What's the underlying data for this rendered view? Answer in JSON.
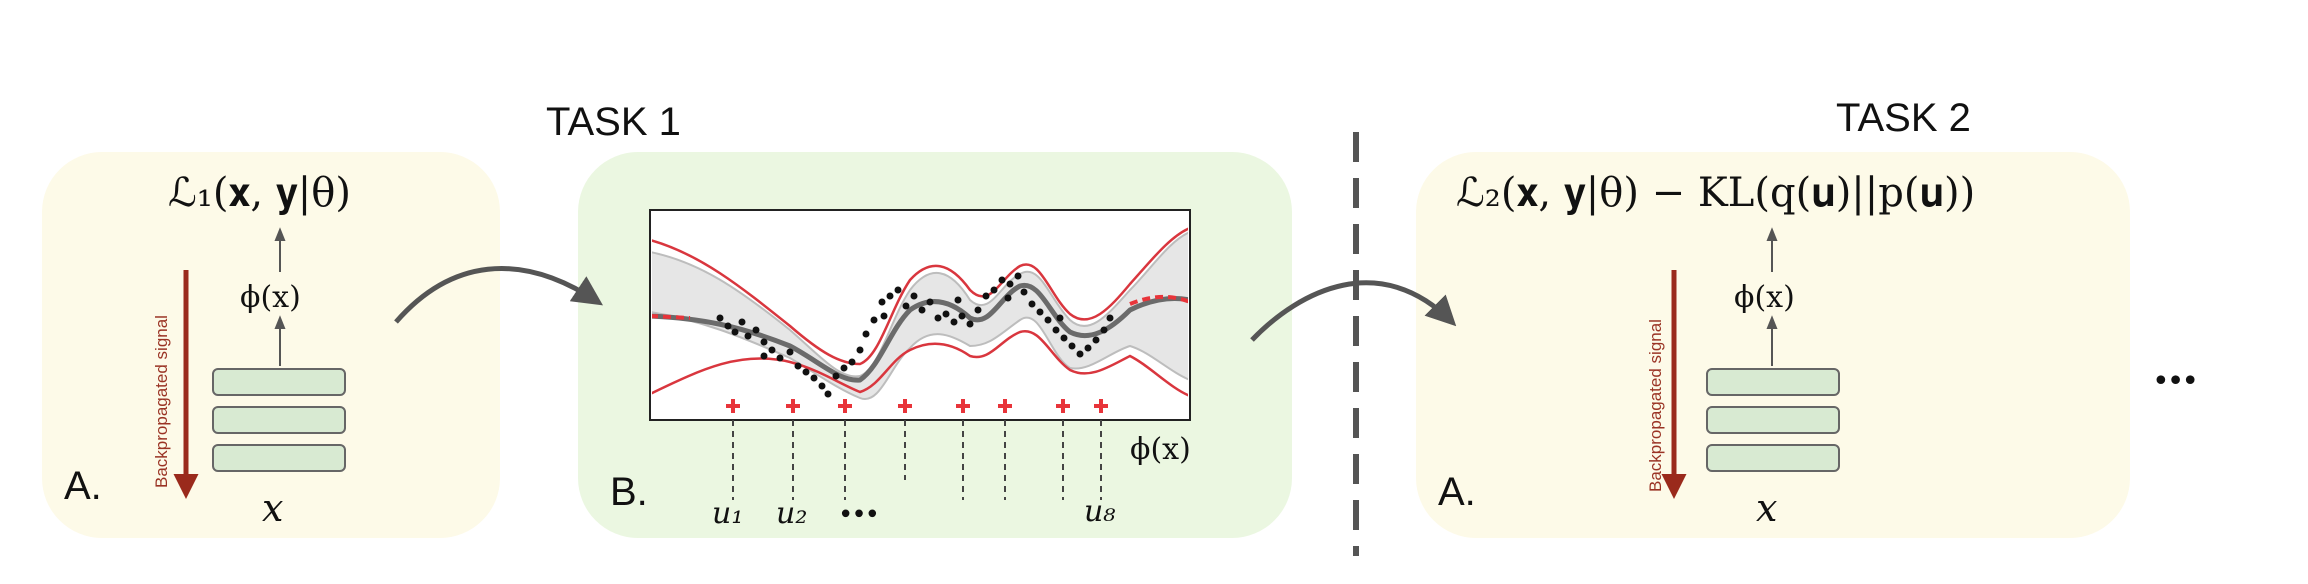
{
  "task1": {
    "title": "TASK 1"
  },
  "task2": {
    "title": "TASK 2"
  },
  "panel_a1": {
    "loss": "ℒ₁(𝐱, 𝐲|θ)",
    "feature": "ϕ(x)",
    "input": "x",
    "signal_label": "Backpropagated signal",
    "letter": "A."
  },
  "panel_b": {
    "letter": "B.",
    "axis_label": "ϕ(x)",
    "inducing_labels": [
      "u₁",
      "u₂",
      "u₈"
    ],
    "ellipsis": "•••"
  },
  "panel_a2": {
    "loss": "ℒ₂(𝐱, 𝐲|θ) − KL(q(𝐮)||p(𝐮))",
    "feature": "ϕ(x)",
    "input": "x",
    "signal_label": "Backpropagated signal",
    "letter": "A."
  },
  "trailing_ellipsis": "•••",
  "colors": {
    "panel_yellow": "#fdfae8",
    "panel_green": "#ebf7e1",
    "layer_fill": "#d8ead2",
    "signal_arrow": "#9a2a1c",
    "bound_line": "#d9363e",
    "inducing_marker": "#e8343a",
    "mean_line": "#6b6b6b"
  }
}
